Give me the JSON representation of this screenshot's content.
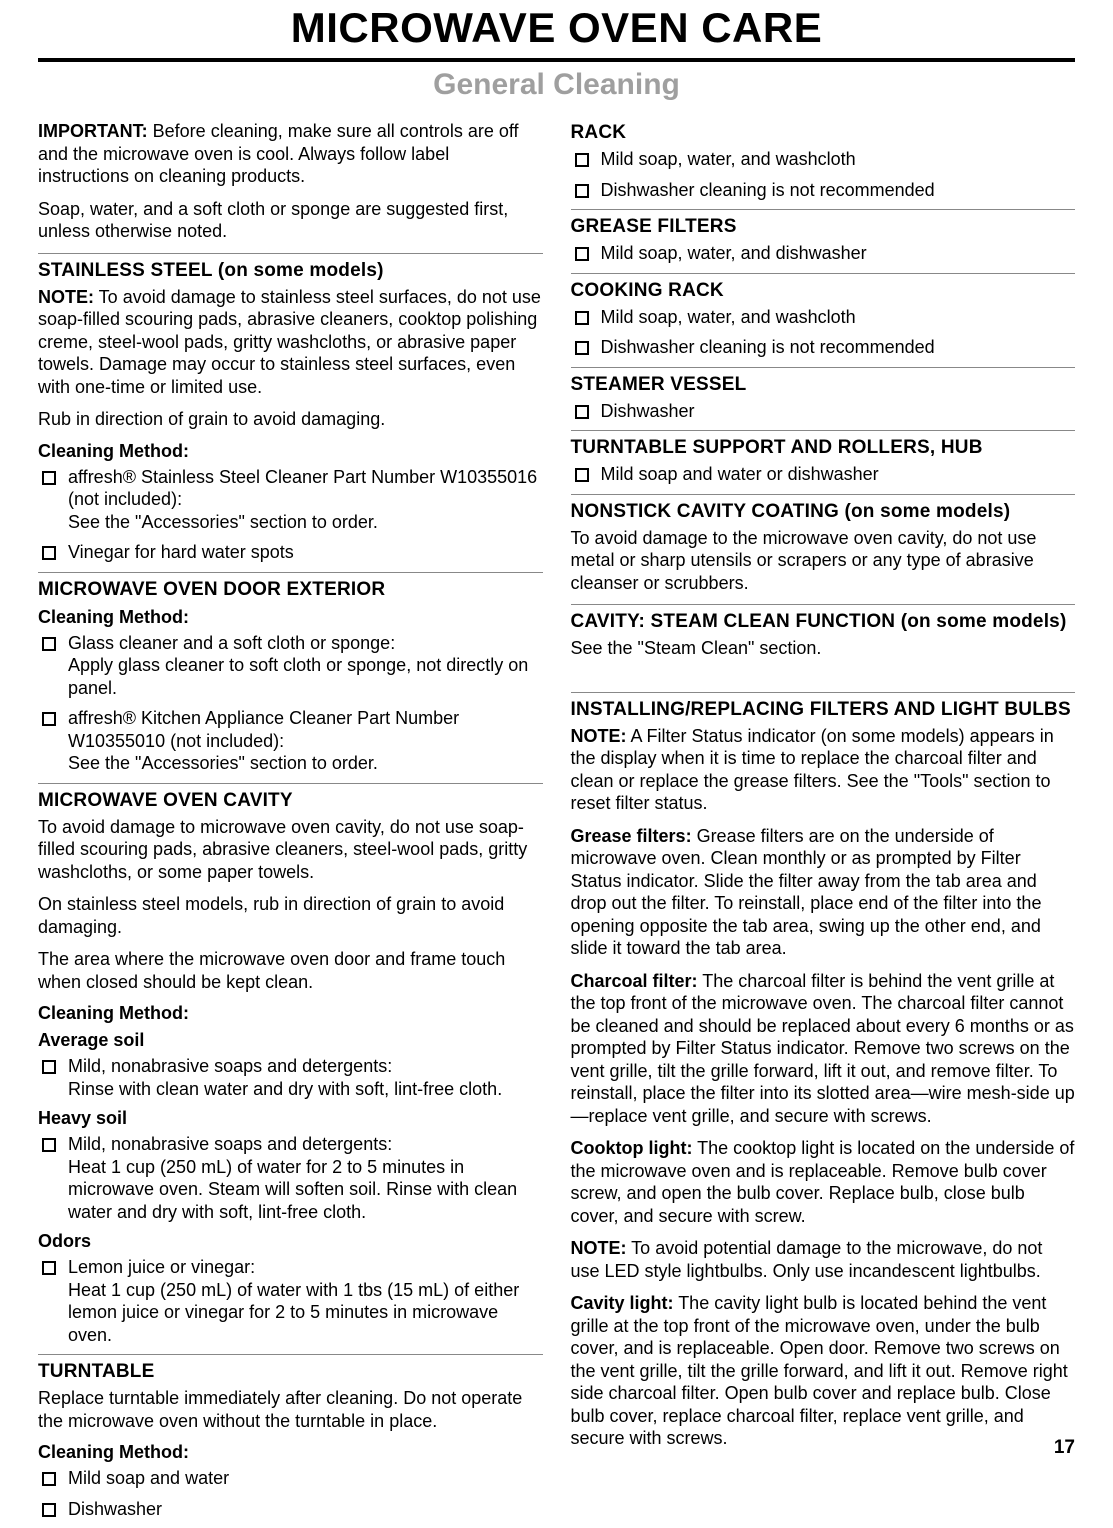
{
  "page_title": "MICROWAVE OVEN CARE",
  "subtitle": "General Cleaning",
  "page_number": "17",
  "important_lead": "IMPORTANT:",
  "important_text": " Before cleaning, make sure all controls are off and the microwave oven is cool. Always follow label instructions on cleaning products.",
  "soap_text": "Soap, water, and a soft cloth or sponge are suggested first, unless otherwise noted.",
  "stainless": {
    "heading": "STAINLESS STEEL (on some models)",
    "note_lead": "NOTE:",
    "note_text": " To avoid damage to stainless steel surfaces, do not use soap-filled scouring pads, abrasive cleaners, cooktop polishing creme, steel-wool pads, gritty washcloths, or abrasive paper towels. Damage may occur to stainless steel surfaces, even with one-time or limited use.",
    "rub": "Rub in direction of grain to avoid damaging.",
    "method_label": "Cleaning Method:",
    "items": [
      "affresh® Stainless Steel Cleaner Part Number W10355016 (not included):\nSee the \"Accessories\" section to order.",
      "Vinegar for hard water spots"
    ]
  },
  "door_ext": {
    "heading": "MICROWAVE OVEN DOOR EXTERIOR",
    "method_label": "Cleaning Method:",
    "items": [
      "Glass cleaner and a soft cloth or sponge:\nApply glass cleaner to soft cloth or sponge, not directly on panel.",
      "affresh® Kitchen Appliance Cleaner Part Number W10355010 (not included):\nSee the \"Accessories\" section to order."
    ]
  },
  "cavity": {
    "heading": "MICROWAVE OVEN CAVITY",
    "p1": "To avoid damage to microwave oven cavity, do not use soap-filled scouring pads, abrasive cleaners, steel-wool pads, gritty washcloths, or some paper towels.",
    "p2": "On stainless steel models, rub in direction of grain to avoid damaging.",
    "p3": "The area where the microwave oven door and frame touch when closed should be kept clean.",
    "method_label": "Cleaning Method:",
    "avg_label": "Average soil",
    "avg_items": [
      "Mild, nonabrasive soaps and detergents:\nRinse with clean water and dry with soft, lint-free cloth."
    ],
    "heavy_label": "Heavy soil",
    "heavy_items": [
      "Mild, nonabrasive soaps and detergents:\nHeat 1 cup (250 mL) of water for 2 to 5 minutes in microwave oven. Steam will soften soil. Rinse with clean water and dry with soft, lint-free cloth."
    ],
    "odors_label": "Odors",
    "odors_items": [
      "Lemon juice or vinegar:\nHeat 1 cup (250 mL) of water with 1 tbs (15 mL) of either lemon juice or vinegar for 2 to 5 minutes in microwave oven."
    ]
  },
  "turntable": {
    "heading": "TURNTABLE",
    "p1": "Replace turntable immediately after cleaning. Do not operate the microwave oven without the turntable in place.",
    "method_label": "Cleaning Method:",
    "items": [
      "Mild soap and water",
      "Dishwasher"
    ]
  },
  "rack": {
    "heading": "RACK",
    "items": [
      "Mild soap, water, and washcloth",
      "Dishwasher cleaning is not recommended"
    ]
  },
  "grease": {
    "heading": "GREASE FILTERS",
    "items": [
      "Mild soap, water, and dishwasher"
    ]
  },
  "cook_rack": {
    "heading": "COOKING RACK",
    "items": [
      "Mild soap, water, and washcloth",
      "Dishwasher cleaning is not recommended"
    ]
  },
  "steamer": {
    "heading": "STEAMER VESSEL",
    "items": [
      "Dishwasher"
    ]
  },
  "support": {
    "heading": "TURNTABLE SUPPORT AND ROLLERS, HUB",
    "items": [
      "Mild soap and water or dishwasher"
    ]
  },
  "nonstick": {
    "heading": "NONSTICK CAVITY COATING (on some models)",
    "p1": "To avoid damage to the microwave oven cavity, do not use metal or sharp utensils or scrapers or any type of abrasive cleanser or scrubbers."
  },
  "steam_clean": {
    "heading": "CAVITY: STEAM CLEAN FUNCTION (on some models)",
    "p1": "See the \"Steam Clean\" section."
  },
  "install": {
    "heading": "INSTALLING/REPLACING FILTERS AND LIGHT BULBS",
    "note_lead": "NOTE:",
    "note_text": " A Filter Status indicator (on some models) appears in the display when it is time to replace the charcoal filter and clean or replace the grease filters. See the \"Tools\" section to reset filter status.",
    "grease_lead": "Grease filters:",
    "grease_text": " Grease filters are on the underside of microwave oven. Clean monthly or as prompted by Filter Status indicator. Slide the filter away from the tab area and drop out the filter. To reinstall, place end of the filter into the opening opposite the tab area, swing up the other end, and slide it toward the tab area.",
    "charcoal_lead": "Charcoal filter:",
    "charcoal_text": " The charcoal filter is behind the vent grille at the top front of the microwave oven. The charcoal filter cannot be cleaned and should be replaced about every 6 months or as prompted by Filter Status indicator. Remove two screws on the vent grille, tilt the grille forward, lift it out, and remove filter. To reinstall, place the filter into its slotted area—wire mesh-side up—replace vent grille, and secure with screws.",
    "cooktop_lead": "Cooktop light:",
    "cooktop_text": " The cooktop light is located on the underside of the microwave oven and is replaceable. Remove bulb cover screw, and open the bulb cover. Replace bulb, close bulb cover, and secure with screw.",
    "note2_lead": "NOTE:",
    "note2_text": " To avoid potential damage to the microwave, do not use LED style lightbulbs. Only use incandescent lightbulbs.",
    "cavitylight_lead": "Cavity light:",
    "cavitylight_text": " The cavity light bulb is located behind the vent grille at the top front of the microwave oven, under the bulb cover, and is replaceable. Open door. Remove two screws on the vent grille, tilt the grille forward, and lift it out. Remove right side charcoal filter. Open bulb cover and replace bulb. Close bulb cover, replace charcoal filter, replace vent grille, and secure with screws."
  }
}
